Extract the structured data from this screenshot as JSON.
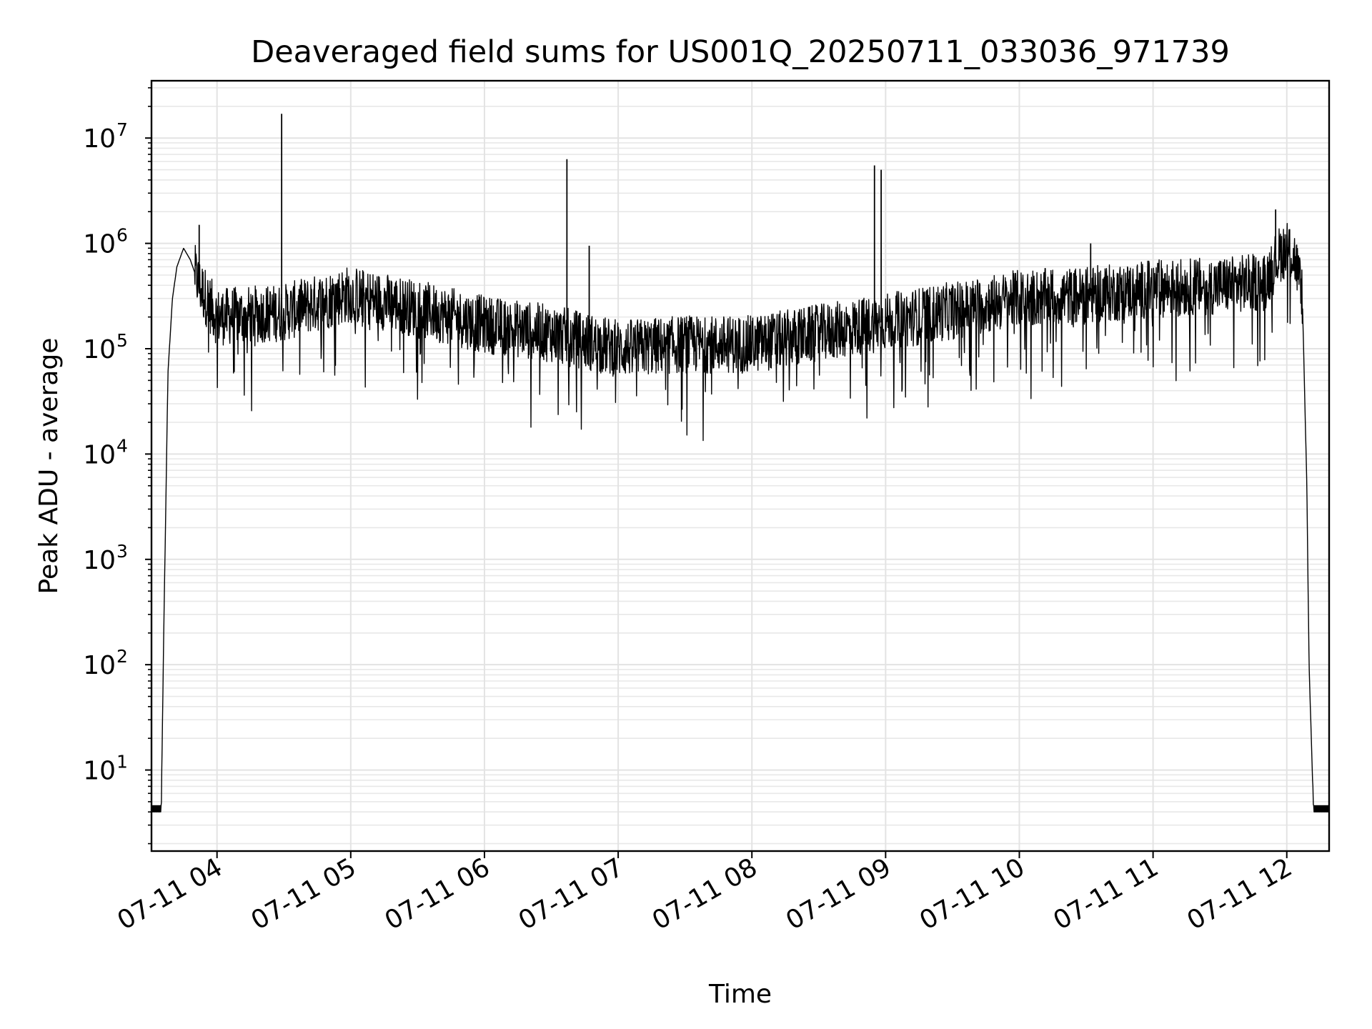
{
  "chart_data": {
    "type": "line",
    "title": "Deaveraged field sums for US001Q_20250711_033036_971739",
    "xlabel": "Time",
    "ylabel": "Peak ADU - average",
    "yscale": "log",
    "ylim": [
      1.7,
      35000000
    ],
    "xlim": [
      "2025-07-11 03:30:36",
      "2025-07-11 12:19:00"
    ],
    "grid": "on (major and minor)",
    "line_color": "#000000",
    "x_ticks": [
      "07-11 04",
      "07-11 05",
      "07-11 06",
      "07-11 07",
      "07-11 08",
      "07-11 09",
      "07-11 10",
      "07-11 11",
      "07-11 12"
    ],
    "y_ticks": [
      {
        "base": "10",
        "exp": "1"
      },
      {
        "base": "10",
        "exp": "2"
      },
      {
        "base": "10",
        "exp": "3"
      },
      {
        "base": "10",
        "exp": "4"
      },
      {
        "base": "10",
        "exp": "5"
      },
      {
        "base": "10",
        "exp": "6"
      },
      {
        "base": "10",
        "exp": "7"
      }
    ],
    "series": [
      {
        "points": [
          {
            "x": "2025-07-11 03:30:36",
            "y": 4
          },
          {
            "x": "2025-07-11 03:35:00",
            "y": 4
          },
          {
            "x": "2025-07-11 03:36:00",
            "y": 150
          },
          {
            "x": "2025-07-11 03:37:00",
            "y": 3000
          },
          {
            "x": "2025-07-11 03:38:00",
            "y": 60000
          },
          {
            "x": "2025-07-11 03:40:00",
            "y": 300000
          },
          {
            "x": "2025-07-11 03:42:00",
            "y": 600000
          },
          {
            "x": "2025-07-11 03:45:00",
            "y": 900000
          },
          {
            "x": "2025-07-11 03:48:00",
            "y": 700000
          },
          {
            "x": "2025-07-11 03:52:00",
            "y": 400000
          },
          {
            "x": "2025-07-11 04:00:00",
            "y": 200000
          },
          {
            "x": "2025-07-11 04:30:00",
            "y": 220000
          },
          {
            "x": "2025-07-11 04:59:00",
            "y": 330000
          },
          {
            "x": "2025-07-11 05:30:00",
            "y": 240000
          },
          {
            "x": "2025-07-11 06:00:00",
            "y": 170000
          },
          {
            "x": "2025-07-11 06:30:00",
            "y": 140000
          },
          {
            "x": "2025-07-11 07:00:00",
            "y": 100000
          },
          {
            "x": "2025-07-11 07:30:00",
            "y": 110000
          },
          {
            "x": "2025-07-11 08:00:00",
            "y": 110000
          },
          {
            "x": "2025-07-11 08:30:00",
            "y": 140000
          },
          {
            "x": "2025-07-11 09:00:00",
            "y": 180000
          },
          {
            "x": "2025-07-11 09:30:00",
            "y": 230000
          },
          {
            "x": "2025-07-11 10:00:00",
            "y": 300000
          },
          {
            "x": "2025-07-11 10:30:00",
            "y": 320000
          },
          {
            "x": "2025-07-11 11:00:00",
            "y": 370000
          },
          {
            "x": "2025-07-11 11:30:00",
            "y": 400000
          },
          {
            "x": "2025-07-11 11:50:00",
            "y": 430000
          },
          {
            "x": "2025-07-11 11:57:00",
            "y": 800000
          },
          {
            "x": "2025-07-11 12:00:00",
            "y": 900000
          },
          {
            "x": "2025-07-11 12:04:00",
            "y": 700000
          },
          {
            "x": "2025-07-11 12:07:00",
            "y": 300000
          },
          {
            "x": "2025-07-11 12:09:00",
            "y": 5000
          },
          {
            "x": "2025-07-11 12:10:00",
            "y": 100
          },
          {
            "x": "2025-07-11 12:12:00",
            "y": 4
          },
          {
            "x": "2025-07-11 12:19:00",
            "y": 4
          }
        ],
        "spikes": [
          {
            "x": "2025-07-11 03:52:00",
            "y": 1500000
          },
          {
            "x": "2025-07-11 04:29:00",
            "y": 17000000
          },
          {
            "x": "2025-07-11 06:37:00",
            "y": 6300000
          },
          {
            "x": "2025-07-11 06:47:00",
            "y": 950000
          },
          {
            "x": "2025-07-11 08:55:00",
            "y": 5500000
          },
          {
            "x": "2025-07-11 08:58:00",
            "y": 5000000
          },
          {
            "x": "2025-07-11 10:32:00",
            "y": 1000000
          },
          {
            "x": "2025-07-11 11:55:00",
            "y": 2100000
          }
        ]
      }
    ]
  }
}
